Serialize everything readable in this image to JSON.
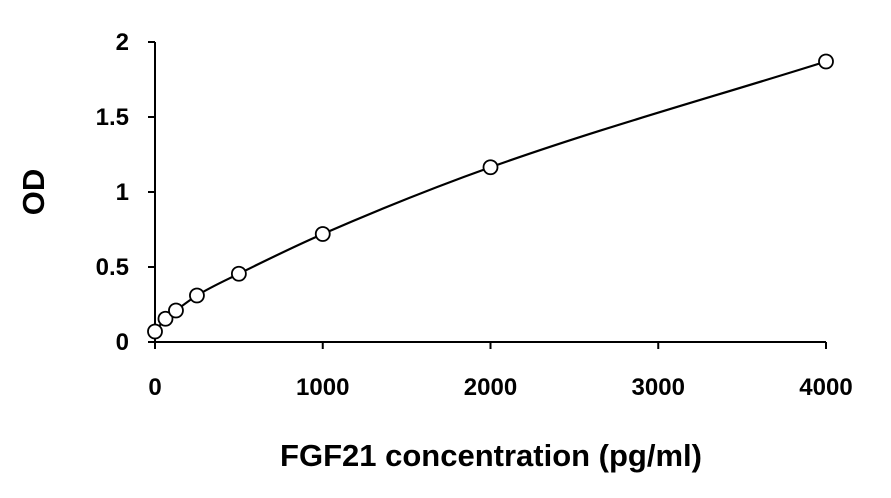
{
  "chart_data": {
    "type": "scatter",
    "title": "",
    "xlabel": "FGF21 concentration (pg/ml)",
    "ylabel": "OD",
    "xlim": [
      0,
      4000
    ],
    "ylim": [
      0,
      2
    ],
    "x_ticks": [
      0,
      1000,
      2000,
      3000,
      4000
    ],
    "y_ticks": [
      0,
      0.5,
      1,
      1.5,
      2
    ],
    "x_tick_labels": [
      "0",
      "1000",
      "2000",
      "3000",
      "4000"
    ],
    "y_tick_labels": [
      "0",
      "0.5",
      "1",
      "1.5",
      "2"
    ],
    "grid": false,
    "legend": "none",
    "series": [
      {
        "marker": "open-circle",
        "line": "smooth-fit",
        "color": "#000000",
        "x": [
          0,
          62.5,
          125,
          250,
          500,
          1000,
          2000,
          4000
        ],
        "y": [
          0.07,
          0.155,
          0.21,
          0.31,
          0.455,
          0.72,
          1.165,
          1.87
        ]
      }
    ]
  }
}
